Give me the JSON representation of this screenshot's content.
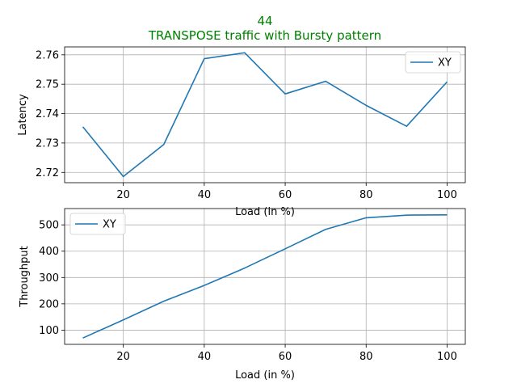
{
  "figure": {
    "title_line1": "44",
    "title_line2": "TRANSPOSE traffic with Bursty pattern",
    "title_color": "#008000"
  },
  "chart_data": [
    {
      "type": "line",
      "x": [
        10,
        20,
        30,
        40,
        50,
        60,
        70,
        80,
        90,
        100
      ],
      "series": [
        {
          "name": "XY",
          "color": "#1f77b4",
          "values": [
            2.7355,
            2.7186,
            2.7295,
            2.7587,
            2.7607,
            2.7467,
            2.751,
            2.7428,
            2.7357,
            2.7508
          ]
        }
      ],
      "xlabel": "Load (in %)",
      "ylabel": "Latency",
      "xlim": [
        5.5,
        104.5
      ],
      "ylim": [
        2.7165,
        2.7627
      ],
      "xticks": [
        20,
        40,
        60,
        80,
        100
      ],
      "xtick_labels": [
        "20",
        "40",
        "60",
        "80",
        "100"
      ],
      "yticks": [
        2.72,
        2.73,
        2.74,
        2.75,
        2.76
      ],
      "ytick_labels": [
        "2.72",
        "2.73",
        "2.74",
        "2.75",
        "2.76"
      ],
      "grid": true,
      "legend": "upper right"
    },
    {
      "type": "line",
      "x": [
        10,
        20,
        30,
        40,
        50,
        60,
        70,
        80,
        90,
        100
      ],
      "series": [
        {
          "name": "XY",
          "color": "#1f77b4",
          "values": [
            70,
            139,
            210,
            270,
            336,
            409,
            483,
            527,
            537,
            538
          ]
        }
      ],
      "xlabel": "Load (in %)",
      "ylabel": "Throughput",
      "xlim": [
        5.5,
        104.5
      ],
      "ylim": [
        46,
        562
      ],
      "xticks": [
        20,
        40,
        60,
        80,
        100
      ],
      "xtick_labels": [
        "20",
        "40",
        "60",
        "80",
        "100"
      ],
      "yticks": [
        100,
        200,
        300,
        400,
        500
      ],
      "ytick_labels": [
        "100",
        "200",
        "300",
        "400",
        "500"
      ],
      "grid": true,
      "legend": "upper left"
    }
  ]
}
